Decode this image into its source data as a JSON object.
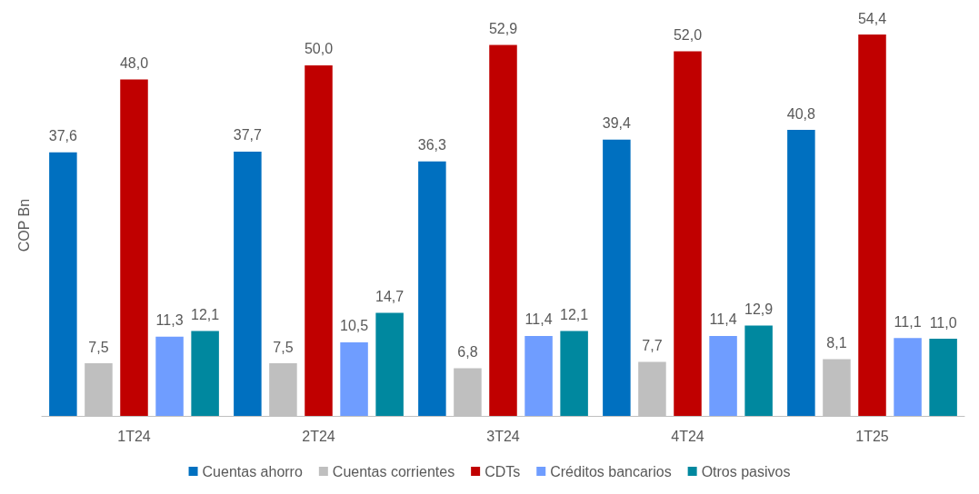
{
  "chart_data": {
    "type": "bar",
    "ylabel": "COP Bn",
    "categories": [
      "1T24",
      "2T24",
      "3T24",
      "4T24",
      "1T25"
    ],
    "legend": "bottom",
    "grid": false,
    "series": [
      {
        "name": "Cuentas ahorro",
        "color": "#0070c0",
        "values": [
          37.6,
          37.7,
          36.3,
          39.4,
          40.8
        ],
        "value_labels": [
          "37,6",
          "37,7",
          "36,3",
          "39,4",
          "40,8"
        ]
      },
      {
        "name": "Cuentas corrientes",
        "color": "#bfbfbf",
        "values": [
          7.5,
          7.5,
          6.8,
          7.7,
          8.1
        ],
        "value_labels": [
          "7,5",
          "7,5",
          "6,8",
          "7,7",
          "8,1"
        ]
      },
      {
        "name": "CDTs",
        "color": "#c00000",
        "values": [
          48.0,
          50.0,
          52.9,
          52.0,
          54.4
        ],
        "value_labels": [
          "48,0",
          "50,0",
          "52,9",
          "52,0",
          "54,4"
        ]
      },
      {
        "name": "Créditos bancarios",
        "color": "#6f9dff",
        "values": [
          11.3,
          10.5,
          11.4,
          11.4,
          11.1
        ],
        "value_labels": [
          "11,3",
          "10,5",
          "11,4",
          "11,4",
          "11,1"
        ]
      },
      {
        "name": "Otros pasivos",
        "color": "#00889f",
        "values": [
          12.1,
          14.7,
          12.1,
          12.9,
          11.0
        ],
        "value_labels": [
          "12,1",
          "14,7",
          "12,1",
          "12,9",
          "11,0"
        ]
      }
    ]
  }
}
